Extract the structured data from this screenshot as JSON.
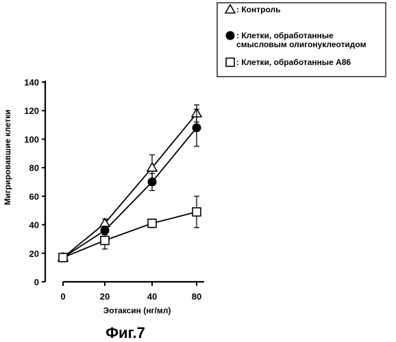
{
  "chart_data": {
    "type": "line",
    "title": "",
    "figure_label": "Фиг.7",
    "xlabel": "Эотаксин (нг/мл)",
    "ylabel": "Мигрировавшие клетки",
    "x_categories": [
      "0",
      "20",
      "40",
      "80"
    ],
    "ylim": [
      0,
      140
    ],
    "yticks": [
      "0",
      "20",
      "40",
      "60",
      "80",
      "100",
      "120",
      "140"
    ],
    "grid": false,
    "legend_position": "top-right",
    "series": [
      {
        "name": "Контроль",
        "marker": "open-triangle",
        "values": [
          17,
          41,
          80,
          118
        ],
        "errors": [
          3,
          3,
          9,
          6
        ]
      },
      {
        "name": "Клетки, обработанные смысловым олигонуклеотидом",
        "marker": "filled-circle",
        "values": [
          17,
          36,
          70,
          108
        ],
        "errors": [
          3,
          3,
          6,
          13
        ]
      },
      {
        "name": "Клетки, обработанные A86",
        "marker": "open-square",
        "values": [
          17,
          29,
          41,
          49
        ],
        "errors": [
          3,
          6,
          3,
          11
        ]
      }
    ],
    "legend": {
      "items": [
        {
          "prefix": ": ",
          "lines": [
            "Контроль"
          ]
        },
        {
          "prefix": ": ",
          "lines": [
            "Клетки, обработанные",
            "смысловым олигонуклеотидом"
          ]
        },
        {
          "prefix": ": ",
          "lines": [
            "Клетки, обработанные A86"
          ]
        }
      ]
    }
  }
}
